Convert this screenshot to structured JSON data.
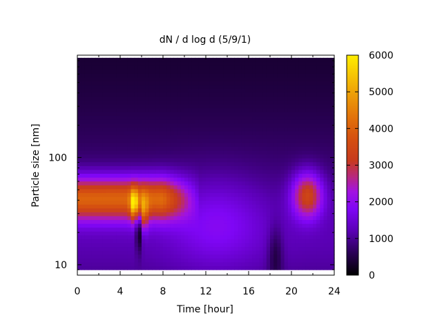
{
  "chart_data": {
    "type": "heatmap",
    "title": "dN / d log d (5/9/1)",
    "xlabel": "Time [hour]",
    "ylabel": "Particle size [nm]",
    "x_range": [
      0,
      24
    ],
    "x_ticks": [
      0,
      4,
      8,
      12,
      16,
      20,
      24
    ],
    "y_scale": "log",
    "y_range": [
      8,
      900
    ],
    "y_data_range": [
      9,
      850
    ],
    "y_tick_labels": [
      10,
      100
    ],
    "colorbar": {
      "range": [
        0,
        6000
      ],
      "ticks": [
        0,
        1000,
        2000,
        3000,
        4000,
        5000,
        6000
      ],
      "colormap": "gnuplot (black-purple-red-orange-yellow)"
    },
    "features": [
      {
        "x": [
          0,
          11
        ],
        "y_peak_nm": 40,
        "level": 3900,
        "description": "morning accumulation band"
      },
      {
        "x": [
          5.3,
          5.3
        ],
        "y_peak_nm": 37,
        "level": 5800,
        "description": "peak maximum"
      },
      {
        "x": [
          21.5,
          21.5
        ],
        "y_peak_nm": 45,
        "level": 3300,
        "description": "evening event"
      }
    ]
  }
}
